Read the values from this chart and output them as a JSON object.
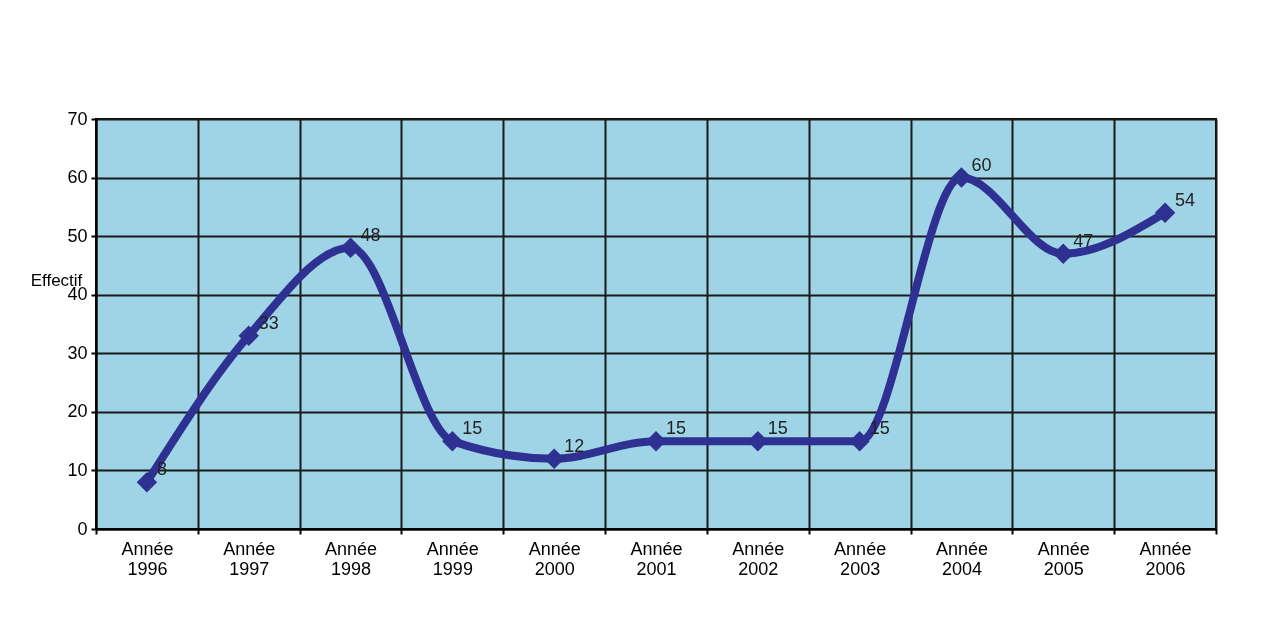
{
  "chart_data": {
    "type": "line",
    "ylabel": "Effectif",
    "categories": [
      "Année 1996",
      "Année 1997",
      "Année 1998",
      "Année 1999",
      "Année 2000",
      "Année 2001",
      "Année 2002",
      "Année 2003",
      "Année 2004",
      "Année 2005",
      "Année 2006"
    ],
    "series": [
      {
        "color": "#2e3192",
        "values": [
          8,
          33,
          48,
          15,
          12,
          15,
          15,
          15,
          60,
          47,
          54
        ]
      }
    ],
    "ylim": [
      0,
      70
    ],
    "yticks": [
      0,
      10,
      20,
      30,
      40,
      50,
      60,
      70
    ],
    "grid": true,
    "marker": "diamond",
    "line_style": "solid",
    "data_labels": true,
    "legend": false
  }
}
